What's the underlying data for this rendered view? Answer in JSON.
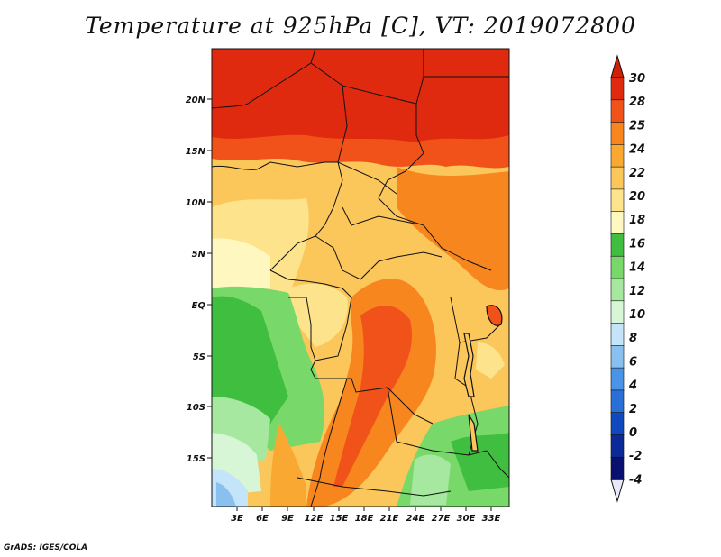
{
  "title": "Temperature at 925hPa [C], VT: 2019072800",
  "credit": "GrADS: IGES/COLA",
  "map": {
    "lat_labels": [
      "20N",
      "15N",
      "10N",
      "5N",
      "EQ",
      "5S",
      "10S",
      "15S"
    ],
    "lat_values": [
      20,
      15,
      10,
      5,
      0,
      -5,
      -10,
      -15
    ],
    "lon_labels": [
      "3E",
      "6E",
      "9E",
      "12E",
      "15E",
      "18E",
      "21E",
      "24E",
      "27E",
      "30E",
      "33E"
    ],
    "lon_values": [
      3,
      6,
      9,
      12,
      15,
      18,
      21,
      24,
      27,
      30,
      33
    ],
    "lon_range": [
      0,
      35
    ],
    "lat_range": [
      -20,
      25
    ]
  },
  "colorbar": {
    "labels": [
      "30",
      "28",
      "25",
      "24",
      "22",
      "20",
      "18",
      "16",
      "14",
      "12",
      "10",
      "8",
      "6",
      "4",
      "2",
      "0",
      "-2",
      "-4"
    ],
    "colors": [
      "#e02a10",
      "#f0521a",
      "#f7861f",
      "#f9a932",
      "#fbc65a",
      "#fde48c",
      "#fff7c0",
      "#3fbe3f",
      "#78d86a",
      "#a7e8a0",
      "#d6f6d6",
      "#c4e4fa",
      "#8ac0f0",
      "#4a94e8",
      "#2a6ed8",
      "#1048c0",
      "#0a2a98",
      "#0a1070"
    ],
    "top_arrow_color": "#d02008",
    "bottom_arrow_color": "#e8e8f8"
  }
}
